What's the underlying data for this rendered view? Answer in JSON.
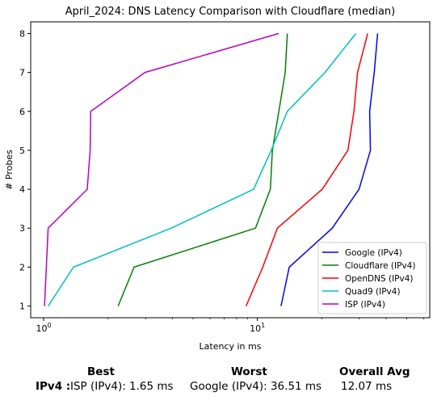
{
  "chart_data": {
    "type": "line",
    "title": "April_2024: DNS Latency Comparison with Cloudflare (median)",
    "xlabel": "Latency in ms",
    "ylabel": "# Probes",
    "xscale": "log",
    "xlim": [
      0.87,
      64
    ],
    "ylim": [
      0.7,
      8.3
    ],
    "x_ticks": [
      {
        "value": 1,
        "label": "10^0"
      },
      {
        "value": 10,
        "label": "10^1"
      }
    ],
    "y_ticks": [
      1,
      2,
      3,
      4,
      5,
      6,
      7,
      8
    ],
    "grid": false,
    "legend_position": "lower right",
    "series": [
      {
        "name": "Google (IPv4)",
        "color": "#0000ff",
        "points": [
          [
            12.9,
            1
          ],
          [
            14.1,
            2
          ],
          [
            22.4,
            3
          ],
          [
            29.9,
            4
          ],
          [
            33.8,
            5
          ],
          [
            33.5,
            6
          ],
          [
            35.2,
            7
          ],
          [
            36.5,
            8
          ]
        ]
      },
      {
        "name": "Cloudflare (IPv4)",
        "color": "#008000",
        "points": [
          [
            2.23,
            1
          ],
          [
            2.65,
            2
          ],
          [
            9.8,
            3
          ],
          [
            11.5,
            4
          ],
          [
            11.75,
            5
          ],
          [
            12.6,
            6
          ],
          [
            13.5,
            7
          ],
          [
            13.8,
            8
          ]
        ]
      },
      {
        "name": "OpenDNS (IPv4)",
        "color": "#ff0000",
        "points": [
          [
            8.85,
            1
          ],
          [
            10.6,
            2
          ],
          [
            12.4,
            3
          ],
          [
            20.1,
            4
          ],
          [
            26.5,
            5
          ],
          [
            28.3,
            6
          ],
          [
            29.4,
            7
          ],
          [
            32.8,
            8
          ]
        ]
      },
      {
        "name": "Quad9 (IPv4)",
        "color": "#00bfbf",
        "points": [
          [
            1.05,
            1
          ],
          [
            1.38,
            2
          ],
          [
            3.95,
            3
          ],
          [
            9.6,
            4
          ],
          [
            11.6,
            5
          ],
          [
            13.8,
            6
          ],
          [
            20.7,
            7
          ],
          [
            28.9,
            8
          ]
        ]
      },
      {
        "name": "ISP (IPv4)",
        "color": "#bf00bf",
        "points": [
          [
            1.01,
            1
          ],
          [
            1.05,
            3
          ],
          [
            1.6,
            4
          ],
          [
            1.65,
            5
          ],
          [
            1.66,
            6
          ],
          [
            2.98,
            7
          ],
          [
            12.6,
            8
          ]
        ]
      }
    ]
  },
  "summary": {
    "headers": {
      "best": "Best",
      "worst": "Worst",
      "avg": "Overall Avg"
    },
    "row_label": "IPv4 :",
    "best": "ISP (IPv4): 1.65 ms",
    "worst": "Google (IPv4): 36.51 ms",
    "avg": "12.07 ms"
  }
}
